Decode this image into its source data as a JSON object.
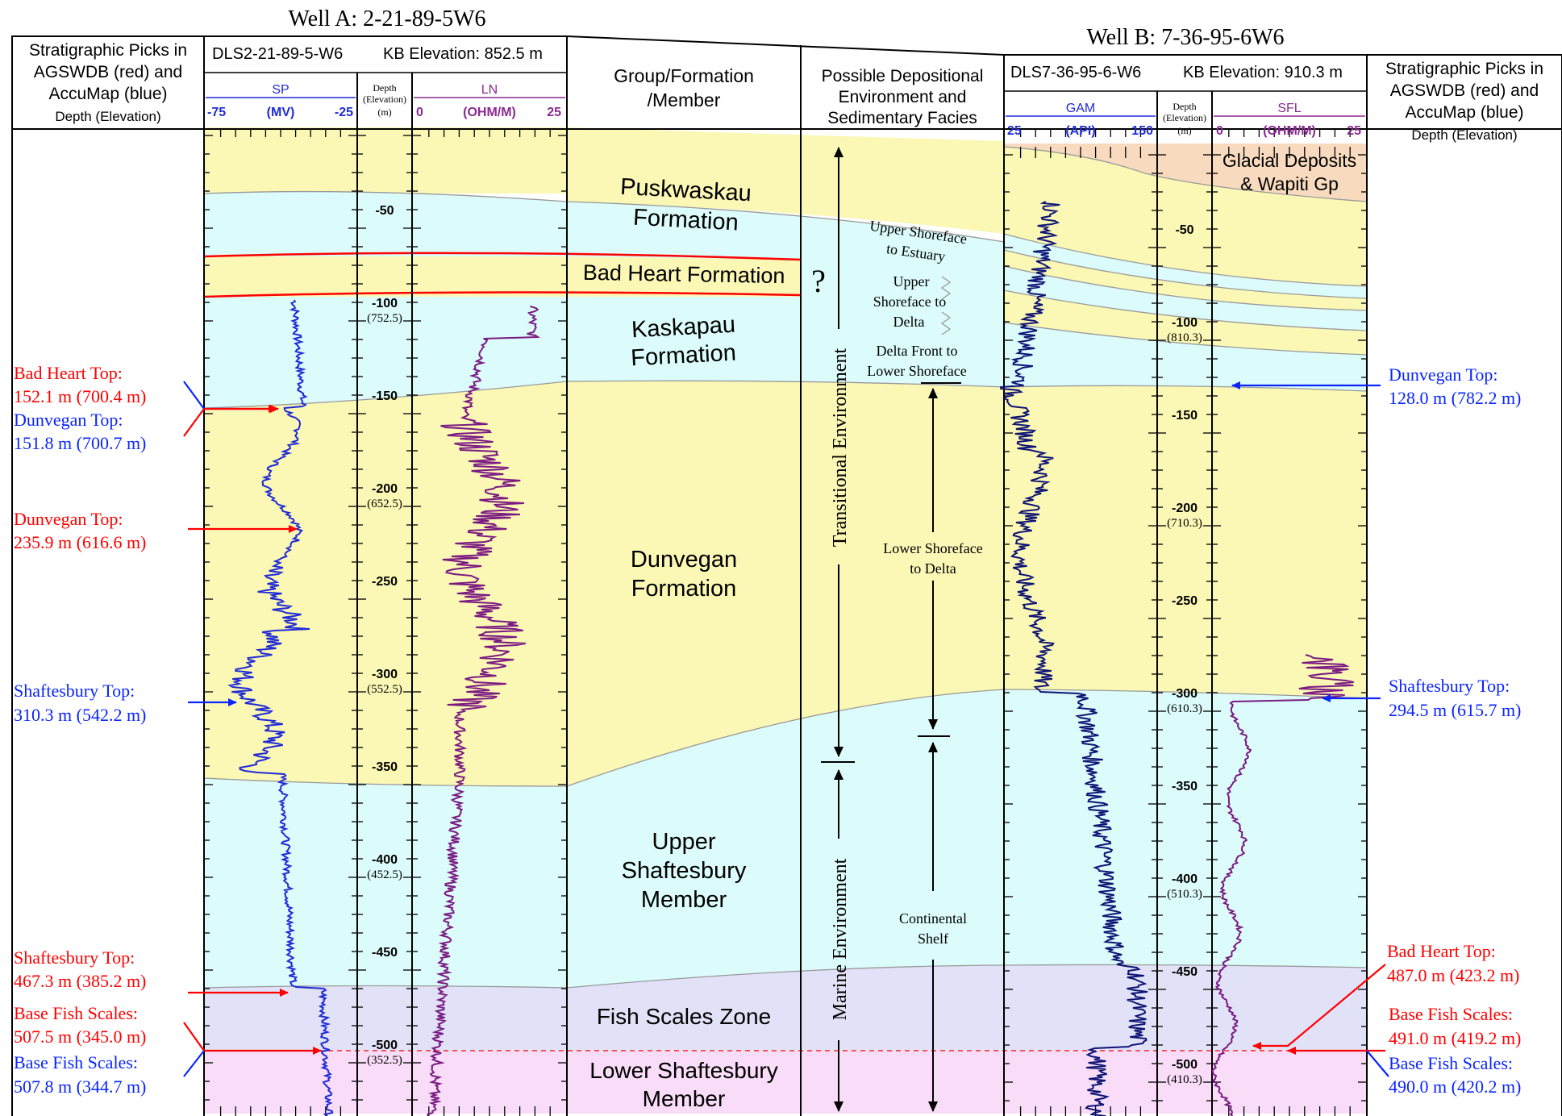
{
  "titles": {
    "well_a": "Well A: 2-21-89-5W6",
    "well_b": "Well B: 7-36-95-6W6"
  },
  "colors": {
    "yellow": "#fbf7b5",
    "cyan": "#dcfbfb",
    "lavender": "#e1e1f7",
    "pink": "#f8dcf8",
    "peach": "#f8dbbf",
    "red": "#ff0000",
    "blue": "#0a25ff",
    "sp_curve": "#1f2bd6",
    "ln_curve": "#7a1a82",
    "gam_curve": "#0e1474",
    "sfl_curve": "#7a1a82",
    "track_head_blue": "#1f2bd6",
    "track_head_purple": "#8a2a92"
  },
  "left_picks_header": {
    "line1": "Stratigraphic Picks in",
    "line2": "AGSWDB (red) and",
    "line3": "AccuMap (blue)",
    "line4": "Depth (Elevation)"
  },
  "right_picks_header": {
    "line1": "Stratigraphic Picks in",
    "line2": "AGSWDB (red) and",
    "line3": "AccuMap (blue)",
    "line4": "Depth (Elevation)"
  },
  "well_a_header": {
    "well": "DLS2-21-89-5-W6",
    "kb": "KB Elevation: 852.5 m",
    "sp": {
      "name": "SP",
      "min": "-75",
      "unit": "(MV)",
      "max": "-25"
    },
    "ln": {
      "name": "LN",
      "min": "0",
      "unit": "(OHM/M)",
      "max": "25"
    },
    "depth": {
      "line1": "Depth",
      "line2": "(Elevation)",
      "line3": "(m)"
    }
  },
  "well_b_header": {
    "well": "DLS7-36-95-6-W6",
    "kb": "KB Elevation: 910.3 m",
    "gam": {
      "name": "GAM",
      "min": "25",
      "unit": "(API)",
      "max": "150"
    },
    "sfl": {
      "name": "SFL",
      "min": "0",
      "unit": "(OHM/M)",
      "max": "25"
    },
    "depth": {
      "line1": "Depth",
      "line2": "(Elevation)",
      "line3": "(m)"
    }
  },
  "formation_header": {
    "line1": "Group/Formation",
    "line2": "/Member"
  },
  "environment_header": {
    "line1": "Possible Depositional",
    "line2": "Environment and",
    "line3": "Sedimentary Facies"
  },
  "formations": {
    "puskwaskau": {
      "line1": "Puskwaskau",
      "line2": "Formation"
    },
    "bad_heart": "Bad Heart Formation",
    "kaskapau": {
      "line1": "Kaskapau",
      "line2": "Formation"
    },
    "dunvegan": {
      "line1": "Dunvegan",
      "line2": "Formation"
    },
    "upper_shaftesbury": {
      "line1": "Upper",
      "line2": "Shaftesbury",
      "line3": "Member"
    },
    "fish_scales": "Fish Scales Zone",
    "lower_shaftesbury": {
      "line1": "Lower Shaftesbury",
      "line2": "Member"
    },
    "glacial": {
      "line1": "Glacial Deposits",
      "line2": "& Wapiti Gp"
    }
  },
  "environments": {
    "question": "?",
    "transitional": "Transitional Environment",
    "marine": "Marine Environment",
    "upper_shoreface_estuary": {
      "line1": "Upper Shoreface",
      "line2": "to Estuary"
    },
    "upper_shoreface_delta": {
      "line1": "Upper",
      "line2": "Shoreface to",
      "line3": "Delta"
    },
    "delta_front": {
      "line1": "Delta Front to",
      "line2": "Lower Shoreface"
    },
    "lower_shoreface": {
      "line1": "Lower Shoreface",
      "line2": "to Delta"
    },
    "continental_shelf": {
      "line1": "Continental",
      "line2": "Shelf"
    }
  },
  "depth_labels_a": [
    {
      "depth": "-50",
      "elev": ""
    },
    {
      "depth": "-100",
      "elev": "(752.5)"
    },
    {
      "depth": "-150",
      "elev": ""
    },
    {
      "depth": "-200",
      "elev": "(652.5)"
    },
    {
      "depth": "-250",
      "elev": ""
    },
    {
      "depth": "-300",
      "elev": "(552.5)"
    },
    {
      "depth": "-350",
      "elev": ""
    },
    {
      "depth": "-400",
      "elev": "(452.5)"
    },
    {
      "depth": "-450",
      "elev": ""
    },
    {
      "depth": "-500",
      "elev": "(352.5)"
    }
  ],
  "depth_labels_b": [
    {
      "depth": "-50",
      "elev": ""
    },
    {
      "depth": "-100",
      "elev": "(810.3)"
    },
    {
      "depth": "-150",
      "elev": ""
    },
    {
      "depth": "-200",
      "elev": "(710.3)"
    },
    {
      "depth": "-250",
      "elev": ""
    },
    {
      "depth": "-300",
      "elev": "(610.3)"
    },
    {
      "depth": "-350",
      "elev": ""
    },
    {
      "depth": "-400",
      "elev": "(510.3)"
    },
    {
      "depth": "-450",
      "elev": ""
    },
    {
      "depth": "-500",
      "elev": "(410.3)"
    }
  ],
  "picks_left": [
    {
      "line1": "Bad Heart Top:",
      "line2": "152.1 m (700.4 m)",
      "source": "AGSWDB"
    },
    {
      "line1": "Dunvegan Top:",
      "line2": "151.8 m (700.7 m)",
      "source": "AccuMap"
    },
    {
      "line1": "Dunvegan Top:",
      "line2": "235.9 m (616.6 m)",
      "source": "AGSWDB"
    },
    {
      "line1": "Shaftesbury Top:",
      "line2": "310.3 m (542.2 m)",
      "source": "AccuMap"
    },
    {
      "line1": "Shaftesbury Top:",
      "line2": "467.3 m (385.2 m)",
      "source": "AGSWDB"
    },
    {
      "line1": "Base Fish Scales:",
      "line2": "507.5 m (345.0 m)",
      "source": "AGSWDB"
    },
    {
      "line1": "Base Fish Scales:",
      "line2": "507.8 m (344.7 m)",
      "source": "AccuMap"
    }
  ],
  "picks_right": [
    {
      "line1": "Dunvegan Top:",
      "line2": "128.0 m (782.2 m)",
      "source": "AccuMap"
    },
    {
      "line1": "Shaftesbury Top:",
      "line2": "294.5 m (615.7 m)",
      "source": "AccuMap"
    },
    {
      "line1": "Bad Heart Top:",
      "line2": "487.0 m (423.2 m)",
      "source": "AGSWDB"
    },
    {
      "line1": "Base Fish Scales:",
      "line2": "491.0 m (419.2 m)",
      "source": "AGSWDB"
    },
    {
      "line1": "Base Fish Scales:",
      "line2": "490.0 m (420.2 m)",
      "source": "AccuMap"
    }
  ]
}
